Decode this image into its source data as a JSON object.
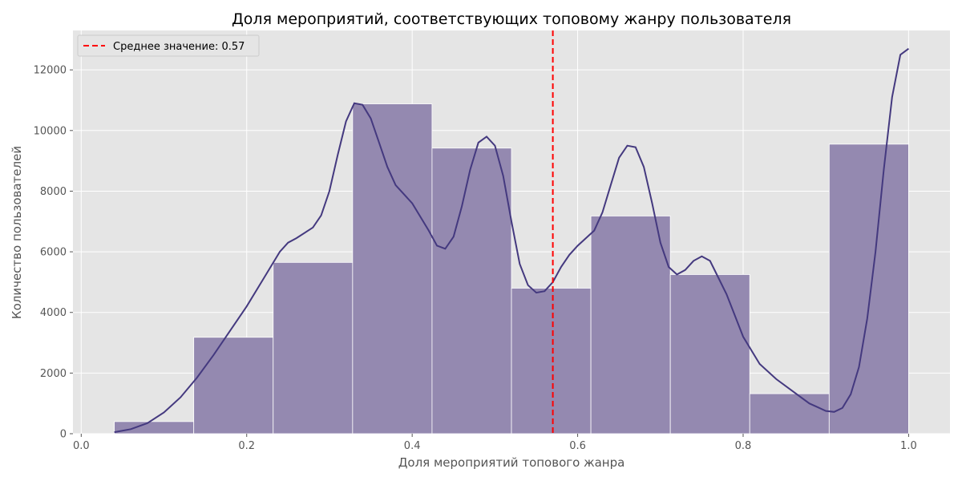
{
  "chart_data": {
    "type": "bar",
    "title": "Доля мероприятий, соответствующих топовому жанру пользователя",
    "xlabel": "Доля мероприятий топового жанра",
    "ylabel": "Количество пользователей",
    "xlim": [
      -0.01,
      1.05
    ],
    "ylim": [
      0,
      13300
    ],
    "xticks": [
      0.0,
      0.2,
      0.4,
      0.6,
      0.8,
      1.0
    ],
    "xtick_labels": [
      "0.0",
      "0.2",
      "0.4",
      "0.6",
      "0.8",
      "1.0"
    ],
    "yticks": [
      0,
      2000,
      4000,
      6000,
      8000,
      10000,
      12000
    ],
    "ytick_labels": [
      "0",
      "2000",
      "4000",
      "6000",
      "8000",
      "10000",
      "12000"
    ],
    "grid": true,
    "bin_edges": [
      0.04,
      0.136,
      0.232,
      0.328,
      0.424,
      0.52,
      0.616,
      0.712,
      0.808,
      0.904,
      1.0
    ],
    "values": [
      400,
      3180,
      5650,
      10880,
      9420,
      4800,
      7180,
      5250,
      1320,
      9550
    ],
    "bar_color": "#9489b0",
    "kde": {
      "color": "#44397f",
      "x": [
        0.04,
        0.06,
        0.08,
        0.1,
        0.12,
        0.14,
        0.16,
        0.18,
        0.2,
        0.22,
        0.24,
        0.25,
        0.26,
        0.28,
        0.29,
        0.3,
        0.31,
        0.32,
        0.33,
        0.34,
        0.35,
        0.36,
        0.37,
        0.38,
        0.4,
        0.42,
        0.43,
        0.44,
        0.45,
        0.46,
        0.47,
        0.48,
        0.49,
        0.5,
        0.51,
        0.52,
        0.53,
        0.54,
        0.55,
        0.56,
        0.57,
        0.58,
        0.59,
        0.6,
        0.62,
        0.63,
        0.64,
        0.65,
        0.66,
        0.67,
        0.68,
        0.69,
        0.7,
        0.71,
        0.72,
        0.73,
        0.74,
        0.75,
        0.76,
        0.78,
        0.8,
        0.82,
        0.84,
        0.86,
        0.88,
        0.9,
        0.91,
        0.92,
        0.93,
        0.94,
        0.95,
        0.96,
        0.97,
        0.98,
        0.99,
        1.0
      ],
      "y": [
        50,
        150,
        350,
        700,
        1200,
        1850,
        2600,
        3400,
        4200,
        5100,
        6000,
        6300,
        6450,
        6800,
        7200,
        8000,
        9200,
        10300,
        10900,
        10850,
        10400,
        9600,
        8800,
        8200,
        7600,
        6700,
        6200,
        6100,
        6500,
        7500,
        8700,
        9600,
        9800,
        9500,
        8500,
        7000,
        5600,
        4900,
        4650,
        4700,
        5000,
        5500,
        5900,
        6200,
        6700,
        7300,
        8200,
        9100,
        9500,
        9450,
        8800,
        7600,
        6300,
        5500,
        5250,
        5400,
        5700,
        5850,
        5700,
        4600,
        3200,
        2300,
        1800,
        1400,
        1000,
        750,
        720,
        850,
        1300,
        2200,
        3800,
        6000,
        8700,
        11100,
        12500,
        12700
      ]
    },
    "mean_line": {
      "x": 0.57,
      "color": "#ff0000"
    },
    "legend": {
      "position": "top-left",
      "entries": [
        "Среднее значение: 0.57"
      ]
    }
  }
}
